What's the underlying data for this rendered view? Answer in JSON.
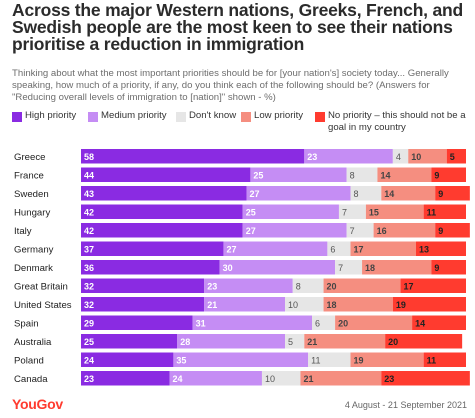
{
  "title": "Across the major Western nations, Greeks, French, and Swedish people are the most keen to see their nations prioritise a reduction in immigration",
  "subtitle": "Thinking about what the most important priorities should be for [your nation's] society today... Generally speaking, how much of a priority, if any, do you think each of the following should be? (Answers for \"Reducing overall levels of immigration to [nation]\" shown - %)",
  "legend": [
    {
      "label": "High priority",
      "color": "#8a2be2"
    },
    {
      "label": "Medium priority",
      "color": "#c58df4"
    },
    {
      "label": "Don't know",
      "color": "#e6e6e6"
    },
    {
      "label": "Low priority",
      "color": "#f58e80"
    },
    {
      "label": "No priority – this should not be a",
      "label2": "goal in my country",
      "color": "#ff3b2f"
    }
  ],
  "chart_data": {
    "type": "bar",
    "orientation": "horizontal",
    "stacked": true,
    "categories": [
      "Greece",
      "France",
      "Sweden",
      "Hungary",
      "Italy",
      "Germany",
      "Denmark",
      "Great Britain",
      "United States",
      "Spain",
      "Australia",
      "Poland",
      "Canada"
    ],
    "series": [
      {
        "name": "High priority",
        "color": "#8a2be2",
        "label_color": "#ffffff",
        "values": [
          58,
          44,
          43,
          42,
          42,
          37,
          36,
          32,
          32,
          29,
          25,
          24,
          23
        ]
      },
      {
        "name": "Medium priority",
        "color": "#c58df4",
        "label_color": "#ffffff",
        "values": [
          23,
          25,
          27,
          25,
          27,
          27,
          30,
          23,
          21,
          31,
          28,
          35,
          24
        ]
      },
      {
        "name": "Don't know",
        "color": "#e6e6e6",
        "label_color": "#555555",
        "values": [
          4,
          8,
          8,
          7,
          7,
          6,
          7,
          8,
          10,
          6,
          5,
          11,
          10
        ]
      },
      {
        "name": "Low priority",
        "color": "#f58e80",
        "label_color": "#444444",
        "values": [
          10,
          14,
          14,
          15,
          16,
          17,
          18,
          20,
          18,
          20,
          21,
          19,
          21
        ]
      },
      {
        "name": "No priority – this should not be a goal in my country",
        "color": "#ff3b2f",
        "label_color": "#222222",
        "values": [
          5,
          9,
          9,
          11,
          9,
          13,
          9,
          17,
          19,
          14,
          20,
          11,
          23
        ]
      }
    ]
  },
  "footer": {
    "brand": "YouGov",
    "date": "4 August - 21 September 2021"
  }
}
